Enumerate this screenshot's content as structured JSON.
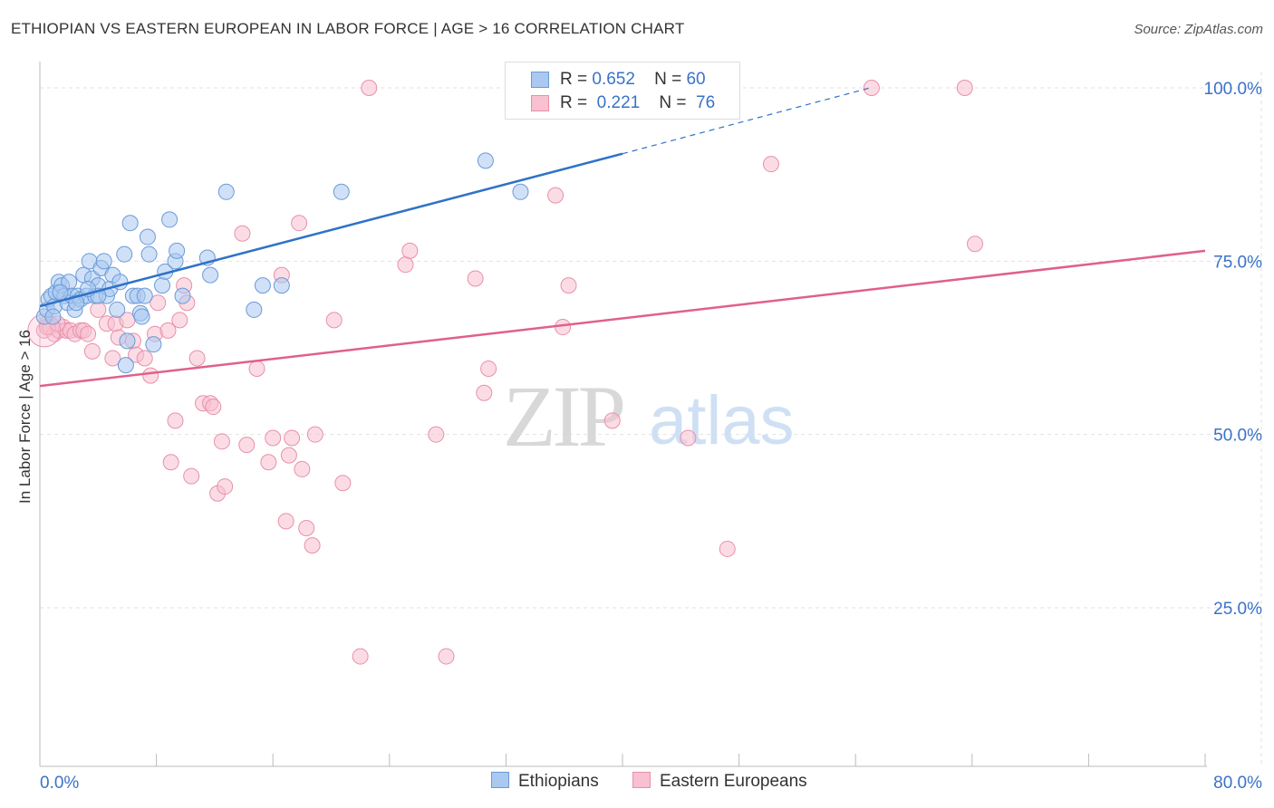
{
  "title": "ETHIOPIAN VS EASTERN EUROPEAN IN LABOR FORCE | AGE > 16 CORRELATION CHART",
  "source": "Source: ZipAtlas.com",
  "watermark": {
    "zip": "ZIP",
    "atlas": "atlas"
  },
  "legend": {
    "rows": [
      {
        "r_label": "R =",
        "r_value": "0.652",
        "n_label": "N =",
        "n_value": "60",
        "color": "#aac8f0",
        "border": "#6a9ad8"
      },
      {
        "r_label": "R =",
        "r_value": "0.221",
        "n_label": "N =",
        "n_value": "76",
        "color": "#f8c0d0",
        "border": "#e890aa"
      }
    ]
  },
  "bottom_legend": [
    {
      "label": "Ethiopians",
      "color": "#aac8f0",
      "border": "#6a9ad8"
    },
    {
      "label": "Eastern Europeans",
      "color": "#f8c0d0",
      "border": "#e890aa"
    }
  ],
  "chart_data": {
    "type": "scatter",
    "title": "ETHIOPIAN VS EASTERN EUROPEAN IN LABOR FORCE | AGE > 16 CORRELATION CHART",
    "xlabel": "",
    "ylabel": "In Labor Force | Age > 16",
    "xlim": [
      0,
      80
    ],
    "ylim": [
      0,
      102
    ],
    "x_tick_labels": [
      "0.0%",
      "80.0%"
    ],
    "y_ticks": [
      25,
      50,
      75,
      100
    ],
    "y_tick_labels": [
      "25.0%",
      "50.0%",
      "75.0%",
      "100.0%"
    ],
    "grid": true,
    "series": [
      {
        "name": "Ethiopians",
        "color": "#6a9ad8",
        "fill": "#aac8f0",
        "trend": {
          "x0": 0,
          "y0": 68.5,
          "x1": 40,
          "y1": 90.5,
          "dash_to_x": 57,
          "dash_to_y": 100,
          "color": "#2f72c8"
        },
        "points": [
          [
            0.3,
            67
          ],
          [
            0.5,
            68
          ],
          [
            0.6,
            69.5
          ],
          [
            0.8,
            70
          ],
          [
            1,
            68.5
          ],
          [
            1.1,
            70.5
          ],
          [
            1.3,
            72
          ],
          [
            1.5,
            71.5
          ],
          [
            1.7,
            70
          ],
          [
            1.9,
            69
          ],
          [
            2,
            72
          ],
          [
            2.2,
            70
          ],
          [
            2.4,
            68
          ],
          [
            2.6,
            70
          ],
          [
            2.8,
            69.5
          ],
          [
            3,
            73
          ],
          [
            3.2,
            70
          ],
          [
            3.4,
            75
          ],
          [
            3.6,
            72.5
          ],
          [
            3.8,
            70
          ],
          [
            4,
            71.5
          ],
          [
            4.2,
            74
          ],
          [
            4.4,
            75
          ],
          [
            4.6,
            70
          ],
          [
            4.8,
            71
          ],
          [
            5,
            73
          ],
          [
            5.3,
            68
          ],
          [
            5.5,
            72
          ],
          [
            5.8,
            76
          ],
          [
            6,
            63.5
          ],
          [
            6.2,
            80.5
          ],
          [
            6.4,
            70
          ],
          [
            6.7,
            70
          ],
          [
            6.9,
            67.5
          ],
          [
            7,
            67
          ],
          [
            7.4,
            78.5
          ],
          [
            7.5,
            76
          ],
          [
            7.8,
            63
          ],
          [
            8.4,
            71.5
          ],
          [
            8.6,
            73.5
          ],
          [
            8.9,
            81
          ],
          [
            9.3,
            75
          ],
          [
            9.4,
            76.5
          ],
          [
            9.8,
            70
          ],
          [
            11.5,
            75.5
          ],
          [
            11.7,
            73
          ],
          [
            12.8,
            85
          ],
          [
            14.7,
            68
          ],
          [
            15.3,
            71.5
          ],
          [
            16.6,
            71.5
          ],
          [
            20.7,
            85
          ],
          [
            30.6,
            89.5
          ],
          [
            33,
            85
          ],
          [
            5.9,
            60
          ],
          [
            4,
            70
          ],
          [
            2.5,
            69
          ],
          [
            1.4,
            70.5
          ],
          [
            0.9,
            67
          ],
          [
            3.3,
            71
          ],
          [
            7.2,
            70
          ]
        ]
      },
      {
        "name": "Eastern Europeans",
        "color": "#e890aa",
        "fill": "#f8c0d0",
        "trend": {
          "x0": 0,
          "y0": 57,
          "x1": 80,
          "y1": 76.5,
          "color": "#e0608a"
        },
        "points": [
          [
            0.3,
            65
          ],
          [
            0.5,
            66
          ],
          [
            0.7,
            65.5
          ],
          [
            1,
            64.5
          ],
          [
            1.3,
            65
          ],
          [
            1.6,
            65.5
          ],
          [
            1.8,
            65
          ],
          [
            2.1,
            65
          ],
          [
            2.4,
            64.5
          ],
          [
            2.8,
            65
          ],
          [
            3,
            65
          ],
          [
            3.3,
            64.5
          ],
          [
            3.6,
            62
          ],
          [
            4,
            68
          ],
          [
            4.6,
            66
          ],
          [
            5,
            61
          ],
          [
            5.2,
            66
          ],
          [
            5.4,
            64
          ],
          [
            6,
            66.5
          ],
          [
            6.4,
            63.5
          ],
          [
            6.6,
            61.5
          ],
          [
            7.2,
            61
          ],
          [
            7.6,
            58.5
          ],
          [
            7.9,
            64.5
          ],
          [
            8.1,
            69
          ],
          [
            8.8,
            65
          ],
          [
            9,
            46
          ],
          [
            9.3,
            52
          ],
          [
            9.6,
            66.5
          ],
          [
            9.9,
            71.5
          ],
          [
            10.1,
            69
          ],
          [
            10.4,
            44
          ],
          [
            10.8,
            61
          ],
          [
            11.2,
            54.5
          ],
          [
            11.7,
            54.5
          ],
          [
            11.9,
            54
          ],
          [
            12.2,
            41.5
          ],
          [
            12.5,
            49
          ],
          [
            12.7,
            42.5
          ],
          [
            13.9,
            79
          ],
          [
            14.2,
            48.5
          ],
          [
            14.9,
            59.5
          ],
          [
            15.7,
            46
          ],
          [
            16,
            49.5
          ],
          [
            16.6,
            73
          ],
          [
            16.9,
            37.5
          ],
          [
            17.1,
            47
          ],
          [
            17.3,
            49.5
          ],
          [
            17.8,
            80.5
          ],
          [
            18,
            45
          ],
          [
            18.3,
            36.5
          ],
          [
            18.7,
            34
          ],
          [
            18.9,
            50
          ],
          [
            20.2,
            66.5
          ],
          [
            20.8,
            43
          ],
          [
            22,
            18
          ],
          [
            22.6,
            100
          ],
          [
            25.1,
            74.5
          ],
          [
            25.4,
            76.5
          ],
          [
            27.2,
            50
          ],
          [
            27.9,
            18
          ],
          [
            29.9,
            72.5
          ],
          [
            30.5,
            56
          ],
          [
            30.8,
            59.5
          ],
          [
            35.4,
            84.5
          ],
          [
            35.9,
            65.5
          ],
          [
            36.3,
            71.5
          ],
          [
            39.3,
            52
          ],
          [
            44.5,
            49.5
          ],
          [
            47.2,
            33.5
          ],
          [
            50.2,
            89
          ],
          [
            57.1,
            100
          ],
          [
            63.5,
            100
          ],
          [
            64.2,
            77.5
          ],
          [
            0.5,
            65.5
          ],
          [
            1.2,
            66
          ]
        ]
      }
    ]
  }
}
